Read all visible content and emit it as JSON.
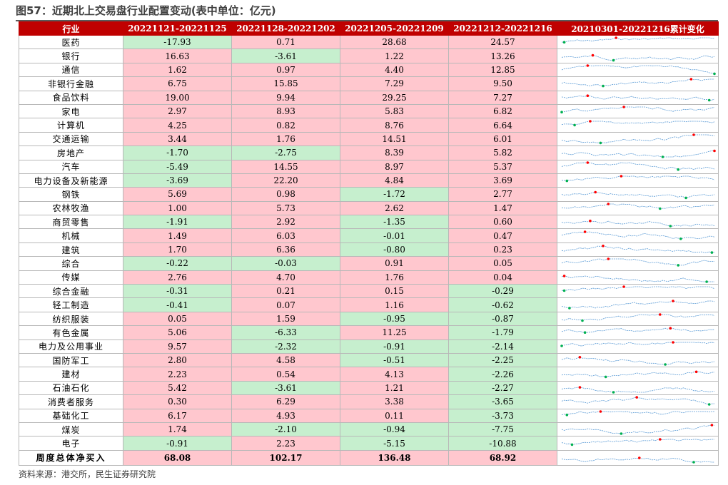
{
  "title": "图57：近期北上交易盘行业配置变动(表中单位：亿元)",
  "source": "资料来源：港交所，民生证券研究院",
  "colors": {
    "header": "#c00000",
    "positive_fill": "#ffc7ce",
    "negative_fill": "#c6efce",
    "sparkline": "#5b9bd5",
    "spark_max": "#ff0000",
    "spark_min": "#00b050"
  },
  "chart_data": {
    "type": "table",
    "columns": [
      "行业",
      "20221121-20221125",
      "20221128-20221202",
      "20221205-20221209",
      "20221212-20221216",
      "20210301-20221216累计变化"
    ],
    "rows": [
      {
        "name": "医药",
        "values": [
          "-17.93",
          "0.71",
          "28.68",
          "24.57"
        ]
      },
      {
        "name": "银行",
        "values": [
          "16.63",
          "-3.61",
          "1.22",
          "13.26"
        ]
      },
      {
        "name": "通信",
        "values": [
          "1.62",
          "0.97",
          "4.40",
          "12.85"
        ]
      },
      {
        "name": "非银行金融",
        "values": [
          "6.75",
          "15.85",
          "7.29",
          "9.50"
        ]
      },
      {
        "name": "食品饮料",
        "values": [
          "19.00",
          "9.94",
          "29.25",
          "7.27"
        ]
      },
      {
        "name": "家电",
        "values": [
          "2.97",
          "8.93",
          "5.83",
          "6.82"
        ]
      },
      {
        "name": "计算机",
        "values": [
          "4.25",
          "0.82",
          "8.76",
          "6.64"
        ]
      },
      {
        "name": "交通运输",
        "values": [
          "3.44",
          "1.76",
          "14.51",
          "6.01"
        ]
      },
      {
        "name": "房地产",
        "values": [
          "-1.70",
          "-2.75",
          "8.39",
          "5.82"
        ]
      },
      {
        "name": "汽车",
        "values": [
          "-5.49",
          "14.55",
          "8.97",
          "5.37"
        ]
      },
      {
        "name": "电力设备及新能源",
        "values": [
          "-3.69",
          "22.20",
          "4.84",
          "3.69"
        ]
      },
      {
        "name": "钢铁",
        "values": [
          "5.69",
          "0.98",
          "-1.72",
          "2.77"
        ]
      },
      {
        "name": "农林牧渔",
        "values": [
          "1.00",
          "5.73",
          "2.62",
          "1.47"
        ]
      },
      {
        "name": "商贸零售",
        "values": [
          "-1.91",
          "2.92",
          "-1.35",
          "0.60"
        ]
      },
      {
        "name": "机械",
        "values": [
          "1.49",
          "6.03",
          "-0.01",
          "0.47"
        ]
      },
      {
        "name": "建筑",
        "values": [
          "1.70",
          "6.36",
          "-0.80",
          "0.23"
        ]
      },
      {
        "name": "综合",
        "values": [
          "-0.22",
          "-0.03",
          "0.91",
          "0.05"
        ]
      },
      {
        "name": "传媒",
        "values": [
          "2.76",
          "4.70",
          "1.76",
          "0.04"
        ]
      },
      {
        "name": "综合金融",
        "values": [
          "-0.31",
          "0.21",
          "0.15",
          "-0.29"
        ]
      },
      {
        "name": "轻工制造",
        "values": [
          "-0.41",
          "0.07",
          "1.16",
          "-0.62"
        ]
      },
      {
        "name": "纺织服装",
        "values": [
          "0.05",
          "1.59",
          "-0.95",
          "-0.87"
        ]
      },
      {
        "name": "有色金属",
        "values": [
          "5.06",
          "-6.33",
          "11.25",
          "-1.79"
        ]
      },
      {
        "name": "电力及公用事业",
        "values": [
          "9.57",
          "-2.32",
          "-0.91",
          "-2.14"
        ]
      },
      {
        "name": "国防军工",
        "values": [
          "2.80",
          "4.58",
          "-0.51",
          "-2.25"
        ]
      },
      {
        "name": "建材",
        "values": [
          "2.23",
          "0.54",
          "4.13",
          "-2.26"
        ]
      },
      {
        "name": "石油石化",
        "values": [
          "5.42",
          "-3.61",
          "1.21",
          "-2.27"
        ]
      },
      {
        "name": "消费者服务",
        "values": [
          "0.30",
          "6.29",
          "3.38",
          "-3.65"
        ]
      },
      {
        "name": "基础化工",
        "values": [
          "6.17",
          "4.93",
          "0.11",
          "-3.73"
        ]
      },
      {
        "name": "煤炭",
        "values": [
          "1.74",
          "-2.10",
          "-0.94",
          "-7.75"
        ]
      },
      {
        "name": "电子",
        "values": [
          "-0.91",
          "2.23",
          "-5.15",
          "-10.88"
        ]
      }
    ],
    "total": {
      "name": "周度总体净买入",
      "values": [
        "68.08",
        "102.17",
        "136.48",
        "68.92"
      ]
    }
  }
}
